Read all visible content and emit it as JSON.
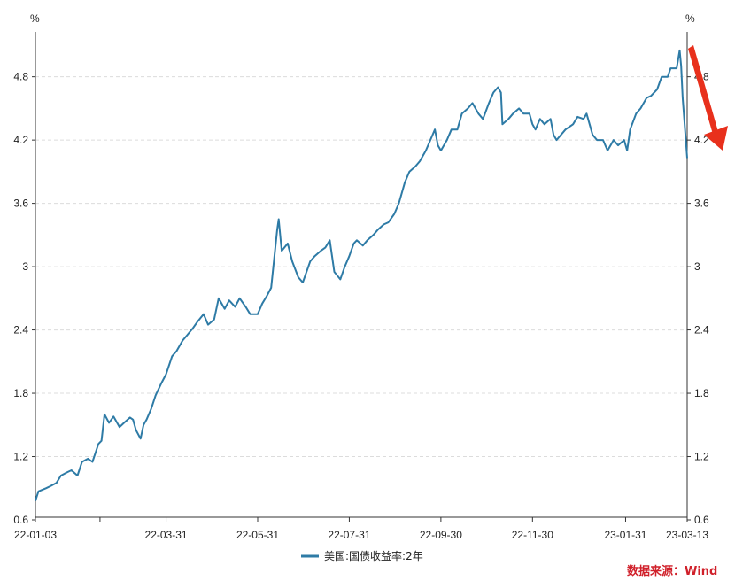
{
  "chart_data": {
    "type": "line",
    "y_unit_left": "%",
    "y_unit_right": "%",
    "ylim": [
      0.6,
      5.2
    ],
    "yticks": [
      "0.6",
      "1.2",
      "1.8",
      "2.4",
      "3",
      "3.6",
      "4.2",
      "4.8"
    ],
    "xlim": [
      "2022-01-03",
      "2023-03-13"
    ],
    "x_tick_labels": [
      "22-01-03",
      "22-03-31",
      "22-05-31",
      "22-07-31",
      "22-09-30",
      "22-11-30",
      "23-01-31",
      "23-03-13"
    ],
    "x_tick_dates": [
      "2022-01-03",
      "2022-03-31",
      "2022-05-31",
      "2022-07-31",
      "2022-09-30",
      "2022-11-30",
      "2023-01-31",
      "2023-03-13"
    ],
    "grid": "horizontal dashed",
    "legend_position": "bottom-center",
    "series": [
      {
        "name": "美国:国债收益率:2年",
        "color": "#2e7ba6",
        "points": [
          [
            "2022-01-03",
            0.78
          ],
          [
            "2022-01-05",
            0.87
          ],
          [
            "2022-01-10",
            0.9
          ],
          [
            "2022-01-13",
            0.92
          ],
          [
            "2022-01-17",
            0.95
          ],
          [
            "2022-01-20",
            1.02
          ],
          [
            "2022-01-24",
            1.05
          ],
          [
            "2022-01-27",
            1.07
          ],
          [
            "2022-01-31",
            1.02
          ],
          [
            "2022-02-03",
            1.15
          ],
          [
            "2022-02-07",
            1.18
          ],
          [
            "2022-02-10",
            1.15
          ],
          [
            "2022-02-14",
            1.32
          ],
          [
            "2022-02-16",
            1.35
          ],
          [
            "2022-02-18",
            1.6
          ],
          [
            "2022-02-21",
            1.52
          ],
          [
            "2022-02-24",
            1.58
          ],
          [
            "2022-02-28",
            1.48
          ],
          [
            "2022-03-03",
            1.52
          ],
          [
            "2022-03-07",
            1.57
          ],
          [
            "2022-03-09",
            1.55
          ],
          [
            "2022-03-11",
            1.45
          ],
          [
            "2022-03-14",
            1.37
          ],
          [
            "2022-03-16",
            1.5
          ],
          [
            "2022-03-18",
            1.55
          ],
          [
            "2022-03-21",
            1.65
          ],
          [
            "2022-03-24",
            1.78
          ],
          [
            "2022-03-28",
            1.9
          ],
          [
            "2022-03-31",
            1.98
          ],
          [
            "2022-04-04",
            2.15
          ],
          [
            "2022-04-07",
            2.2
          ],
          [
            "2022-04-11",
            2.3
          ],
          [
            "2022-04-14",
            2.35
          ],
          [
            "2022-04-18",
            2.42
          ],
          [
            "2022-04-21",
            2.48
          ],
          [
            "2022-04-25",
            2.55
          ],
          [
            "2022-04-28",
            2.45
          ],
          [
            "2022-05-02",
            2.5
          ],
          [
            "2022-05-05",
            2.7
          ],
          [
            "2022-05-09",
            2.6
          ],
          [
            "2022-05-12",
            2.68
          ],
          [
            "2022-05-16",
            2.62
          ],
          [
            "2022-05-19",
            2.7
          ],
          [
            "2022-05-23",
            2.62
          ],
          [
            "2022-05-26",
            2.55
          ],
          [
            "2022-05-31",
            2.55
          ],
          [
            "2022-06-03",
            2.65
          ],
          [
            "2022-06-06",
            2.72
          ],
          [
            "2022-06-09",
            2.8
          ],
          [
            "2022-06-13",
            3.35
          ],
          [
            "2022-06-14",
            3.45
          ],
          [
            "2022-06-16",
            3.15
          ],
          [
            "2022-06-20",
            3.22
          ],
          [
            "2022-06-23",
            3.05
          ],
          [
            "2022-06-27",
            2.9
          ],
          [
            "2022-06-30",
            2.85
          ],
          [
            "2022-07-05",
            3.05
          ],
          [
            "2022-07-08",
            3.1
          ],
          [
            "2022-07-12",
            3.15
          ],
          [
            "2022-07-15",
            3.18
          ],
          [
            "2022-07-18",
            3.25
          ],
          [
            "2022-07-21",
            2.95
          ],
          [
            "2022-07-25",
            2.88
          ],
          [
            "2022-07-28",
            3.0
          ],
          [
            "2022-07-31",
            3.1
          ],
          [
            "2022-08-03",
            3.22
          ],
          [
            "2022-08-05",
            3.25
          ],
          [
            "2022-08-09",
            3.2
          ],
          [
            "2022-08-12",
            3.25
          ],
          [
            "2022-08-16",
            3.3
          ],
          [
            "2022-08-19",
            3.35
          ],
          [
            "2022-08-23",
            3.4
          ],
          [
            "2022-08-26",
            3.42
          ],
          [
            "2022-08-30",
            3.5
          ],
          [
            "2022-09-02",
            3.6
          ],
          [
            "2022-09-06",
            3.8
          ],
          [
            "2022-09-09",
            3.9
          ],
          [
            "2022-09-13",
            3.95
          ],
          [
            "2022-09-16",
            4.0
          ],
          [
            "2022-09-20",
            4.1
          ],
          [
            "2022-09-23",
            4.2
          ],
          [
            "2022-09-26",
            4.3
          ],
          [
            "2022-09-28",
            4.15
          ],
          [
            "2022-09-30",
            4.1
          ],
          [
            "2022-10-04",
            4.2
          ],
          [
            "2022-10-07",
            4.3
          ],
          [
            "2022-10-11",
            4.3
          ],
          [
            "2022-10-14",
            4.45
          ],
          [
            "2022-10-18",
            4.5
          ],
          [
            "2022-10-21",
            4.55
          ],
          [
            "2022-10-25",
            4.45
          ],
          [
            "2022-10-28",
            4.4
          ],
          [
            "2022-11-01",
            4.55
          ],
          [
            "2022-11-04",
            4.65
          ],
          [
            "2022-11-07",
            4.7
          ],
          [
            "2022-11-09",
            4.65
          ],
          [
            "2022-11-10",
            4.35
          ],
          [
            "2022-11-14",
            4.4
          ],
          [
            "2022-11-17",
            4.45
          ],
          [
            "2022-11-21",
            4.5
          ],
          [
            "2022-11-24",
            4.45
          ],
          [
            "2022-11-28",
            4.45
          ],
          [
            "2022-11-30",
            4.35
          ],
          [
            "2022-12-02",
            4.3
          ],
          [
            "2022-12-05",
            4.4
          ],
          [
            "2022-12-08",
            4.35
          ],
          [
            "2022-12-12",
            4.4
          ],
          [
            "2022-12-14",
            4.25
          ],
          [
            "2022-12-16",
            4.2
          ],
          [
            "2022-12-19",
            4.25
          ],
          [
            "2022-12-22",
            4.3
          ],
          [
            "2022-12-27",
            4.35
          ],
          [
            "2022-12-30",
            4.42
          ],
          [
            "2023-01-03",
            4.4
          ],
          [
            "2023-01-05",
            4.45
          ],
          [
            "2023-01-09",
            4.25
          ],
          [
            "2023-01-12",
            4.2
          ],
          [
            "2023-01-16",
            4.2
          ],
          [
            "2023-01-19",
            4.1
          ],
          [
            "2023-01-23",
            4.2
          ],
          [
            "2023-01-26",
            4.15
          ],
          [
            "2023-01-30",
            4.2
          ],
          [
            "2023-02-01",
            4.1
          ],
          [
            "2023-02-03",
            4.3
          ],
          [
            "2023-02-07",
            4.45
          ],
          [
            "2023-02-10",
            4.5
          ],
          [
            "2023-02-14",
            4.6
          ],
          [
            "2023-02-17",
            4.62
          ],
          [
            "2023-02-21",
            4.68
          ],
          [
            "2023-02-24",
            4.8
          ],
          [
            "2023-02-28",
            4.8
          ],
          [
            "2023-03-02",
            4.88
          ],
          [
            "2023-03-06",
            4.88
          ],
          [
            "2023-03-08",
            5.05
          ],
          [
            "2023-03-09",
            4.9
          ],
          [
            "2023-03-10",
            4.6
          ],
          [
            "2023-03-13",
            4.03
          ]
        ]
      }
    ],
    "annotations": [
      {
        "type": "arrow",
        "color": "#e8301c",
        "direction": "down-right"
      }
    ]
  },
  "source_label": "数据来源：Wind",
  "source_color": "#d0202a"
}
